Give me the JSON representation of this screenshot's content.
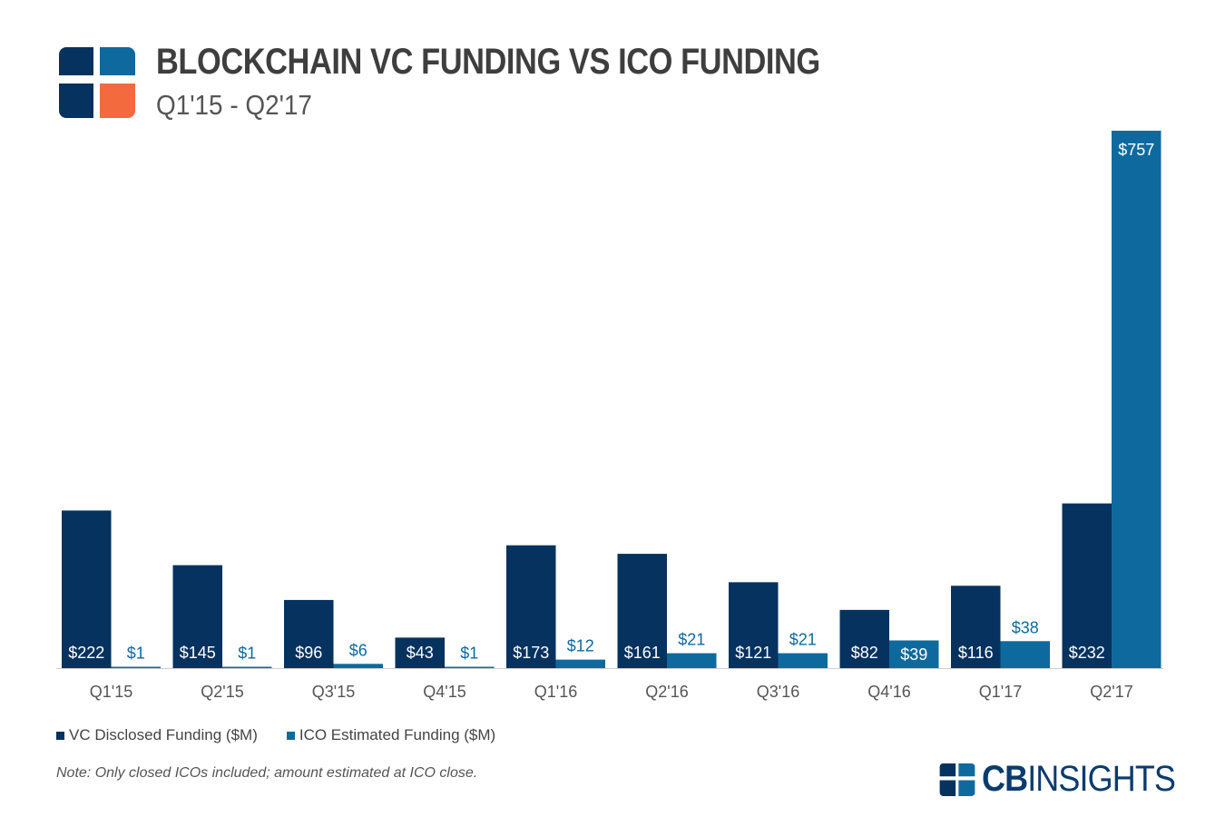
{
  "header": {
    "title": "BLOCKCHAIN VC FUNDING VS ICO FUNDING",
    "subtitle": "Q1'15 - Q2'17"
  },
  "colors": {
    "vc": "#06325f",
    "ico": "#0e6a9e",
    "logo_orange": "#f26a3d",
    "axis": "#555555"
  },
  "legend": {
    "vc_label": "VC Disclosed Funding ($M)",
    "ico_label": "ICO Estimated Funding ($M)"
  },
  "note": "Note: Only closed ICOs included; amount estimated at ICO close.",
  "brand": {
    "bold": "CB",
    "light": "INSIGHTS"
  },
  "chart_data": {
    "type": "bar",
    "title": "BLOCKCHAIN VC FUNDING VS ICO FUNDING",
    "subtitle": "Q1'15 - Q2'17",
    "categories": [
      "Q1'15",
      "Q2'15",
      "Q3'15",
      "Q4'15",
      "Q1'16",
      "Q2'16",
      "Q3'16",
      "Q4'16",
      "Q1'17",
      "Q2'17"
    ],
    "series": [
      {
        "name": "VC Disclosed Funding ($M)",
        "values": [
          222,
          145,
          96,
          43,
          173,
          161,
          121,
          82,
          116,
          232
        ],
        "labels": [
          "$222",
          "$145",
          "$96",
          "$43",
          "$173",
          "$161",
          "$121",
          "$82",
          "$116",
          "$232"
        ]
      },
      {
        "name": "ICO Estimated Funding ($M)",
        "values": [
          1,
          1,
          6,
          1,
          12,
          21,
          21,
          39,
          38,
          757
        ],
        "labels": [
          "$1",
          "$1",
          "$6",
          "$1",
          "$12",
          "$21",
          "$21",
          "$39",
          "$38",
          "$757"
        ]
      }
    ],
    "ylim": [
      0,
      757
    ],
    "grid": false,
    "legend_position": "bottom-left"
  }
}
